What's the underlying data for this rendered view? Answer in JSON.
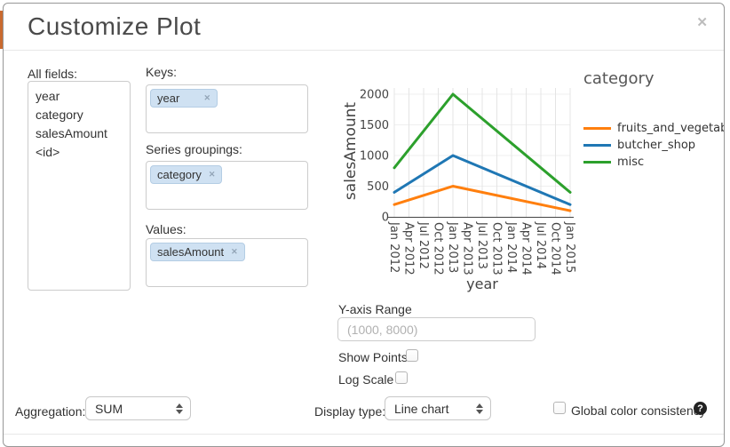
{
  "modal": {
    "title": "Customize Plot",
    "close_icon": "✕"
  },
  "all_fields": {
    "label": "All fields:",
    "items": [
      "year",
      "category",
      "salesAmount",
      "<id>"
    ]
  },
  "slots": {
    "keys": {
      "label": "Keys:",
      "tags": [
        "year"
      ]
    },
    "series": {
      "label": "Series groupings:",
      "tags": [
        "category"
      ]
    },
    "values": {
      "label": "Values:",
      "tags": [
        "salesAmount"
      ]
    }
  },
  "icons": {
    "remove_tag": "✕",
    "help": "?"
  },
  "chart_data": {
    "type": "line",
    "title": "",
    "xlabel": "year",
    "ylabel": "salesAmount",
    "legend_title": "category",
    "legend_position": "right",
    "grid": true,
    "ylim": [
      0,
      2000
    ],
    "y_ticks": [
      0,
      500,
      1000,
      1500,
      2000
    ],
    "x_ticks": [
      "Jan 2012",
      "Apr 2012",
      "Jul 2012",
      "Oct 2012",
      "Jan 2013",
      "Apr 2013",
      "Jul 2013",
      "Oct 2013",
      "Jan 2014",
      "Apr 2014",
      "Jul 2014",
      "Oct 2014",
      "Jan 2015"
    ],
    "x": [
      "Jan 2012",
      "Jan 2013",
      "Jan 2015"
    ],
    "series": [
      {
        "name": "fruits_and_vegetable",
        "color": "#ff7f0e",
        "values": [
          200,
          500,
          100
        ]
      },
      {
        "name": "butcher_shop",
        "color": "#1f77b4",
        "values": [
          400,
          1000,
          200
        ]
      },
      {
        "name": "misc",
        "color": "#2ca02c",
        "values": [
          800,
          2000,
          400
        ]
      }
    ]
  },
  "controls": {
    "y_axis_range": {
      "label": "Y-axis Range",
      "value": "",
      "placeholder": "(1000, 8000)"
    },
    "show_points": {
      "label": "Show Points",
      "checked": false
    },
    "log_scale": {
      "label": "Log Scale",
      "checked": false
    }
  },
  "footer": {
    "aggregation": {
      "label": "Aggregation:",
      "value": "SUM"
    },
    "display_type": {
      "label": "Display type:",
      "value": "Line chart"
    },
    "global_color": {
      "label": "Global color consistency",
      "checked": false
    }
  }
}
